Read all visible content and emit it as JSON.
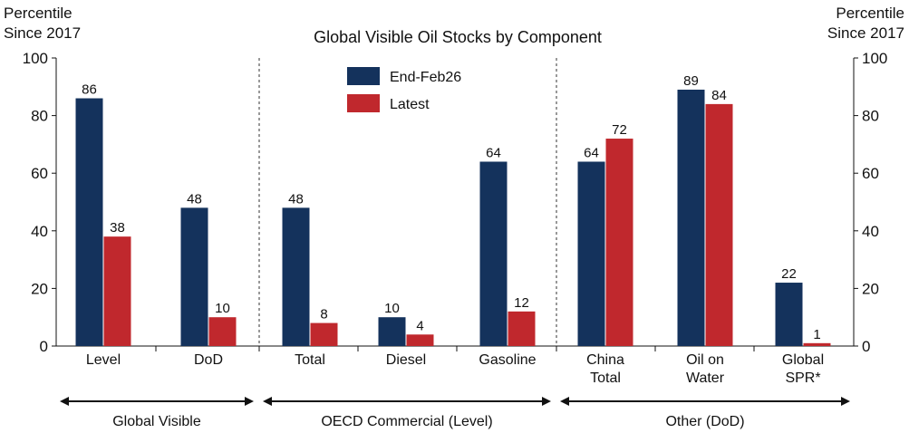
{
  "chart_data": {
    "type": "bar",
    "title": "Global Visible Oil Stocks by Component",
    "ylabel_left": [
      "Percentile",
      "Since 2017"
    ],
    "ylabel_right": [
      "Percentile",
      "Since 2017"
    ],
    "ylim": [
      0,
      100
    ],
    "yticks": [
      0,
      20,
      40,
      60,
      80,
      100
    ],
    "categories": [
      [
        "Level"
      ],
      [
        "DoD"
      ],
      [
        "Total"
      ],
      [
        "Diesel"
      ],
      [
        "Gasoline"
      ],
      [
        "China",
        "Total"
      ],
      [
        "Oil on",
        "Water"
      ],
      [
        "Global",
        "SPR*"
      ]
    ],
    "series": [
      {
        "name": "End-Feb26",
        "color": "#14325c",
        "values": [
          86,
          48,
          48,
          10,
          64,
          64,
          89,
          22
        ]
      },
      {
        "name": "Latest",
        "color": "#c0282d",
        "values": [
          38,
          10,
          8,
          4,
          12,
          72,
          84,
          1
        ]
      }
    ],
    "groups": [
      {
        "label": "Global Visible",
        "from": 0,
        "to": 1
      },
      {
        "label": "OECD Commercial (Level)",
        "from": 2,
        "to": 4
      },
      {
        "label": "Other (DoD)",
        "from": 5,
        "to": 7
      }
    ],
    "legend_position": "top-center",
    "grid": false
  }
}
